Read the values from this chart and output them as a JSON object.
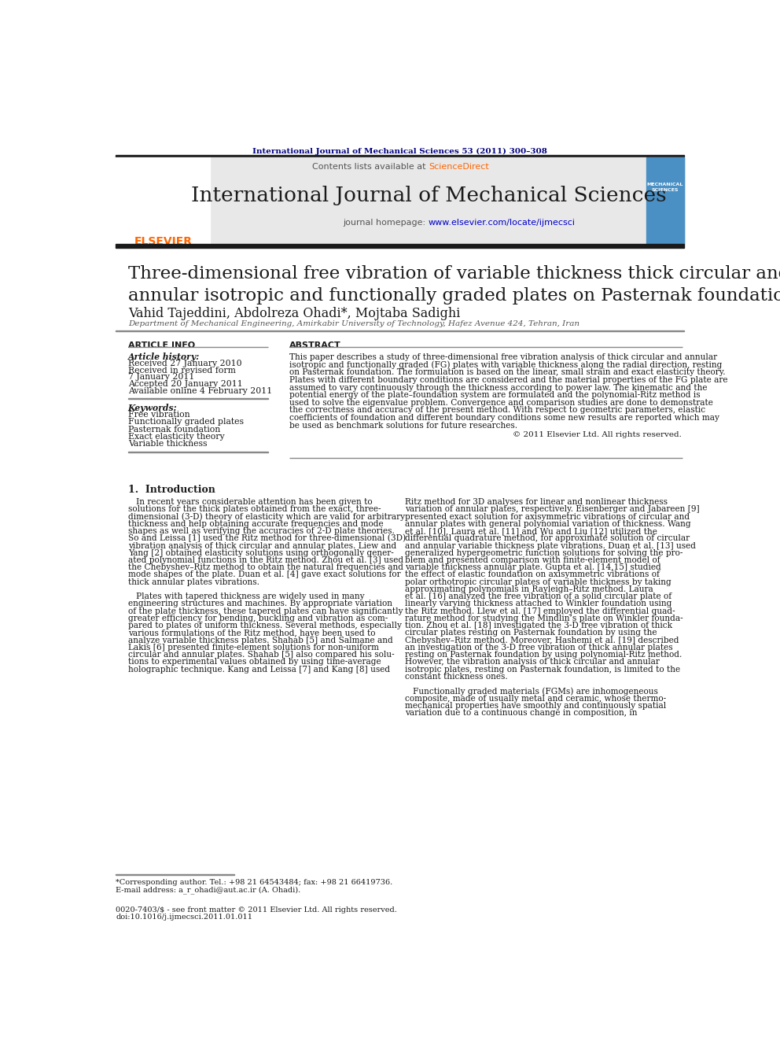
{
  "page_bg": "#ffffff",
  "header_journal_ref": "International Journal of Mechanical Sciences 53 (2011) 300–308",
  "header_ref_color": "#000080",
  "journal_name": "International Journal of Mechanical Sciences",
  "contents_text": "Contents lists available at ",
  "sciencedirect_text": "ScienceDirect",
  "sciencedirect_color": "#ff6600",
  "journal_homepage": "journal homepage: ",
  "homepage_url": "www.elsevier.com/locate/ijmecsci",
  "homepage_url_color": "#0000ff",
  "header_bg": "#e8e8e8",
  "paper_title": "Three-dimensional free vibration of variable thickness thick circular and\nannular isotropic and functionally graded plates on Pasternak foundation",
  "authors": "Vahid Tajeddini, Abdolreza Ohadi*, Mojtaba Sadighi",
  "affiliation": "Department of Mechanical Engineering, Amirkabir University of Technology, Hafez Avenue 424, Tehran, Iran",
  "article_info_title": "ARTICLE INFO",
  "abstract_title": "ABSTRACT",
  "article_history_label": "Article history:",
  "article_history": [
    "Received 27 January 2010",
    "Received in revised form",
    "7 January 2011",
    "Accepted 20 January 2011",
    "Available online 4 February 2011"
  ],
  "keywords_label": "Keywords:",
  "keywords": [
    "Free vibration",
    "Functionally graded plates",
    "Pasternak foundation",
    "Exact elasticity theory",
    "Variable thickness"
  ],
  "copyright": "© 2011 Elsevier Ltd. All rights reserved.",
  "section1_title": "1.  Introduction",
  "footnote_line1": "*Corresponding author. Tel.: +98 21 64543484; fax: +98 21 66419736.",
  "footnote_line2": "E-mail address: a_r_ohadi@aut.ac.ir (A. Ohadi).",
  "footer_line1": "0020-7403/$ - see front matter © 2011 Elsevier Ltd. All rights reserved.",
  "footer_line2": "doi:10.1016/j.ijmecsci.2011.01.011",
  "elsevier_color": "#ff6600",
  "thick_bar_color": "#1a1a1a",
  "abstract_lines": [
    "This paper describes a study of three-dimensional free vibration analysis of thick circular and annular",
    "isotropic and functionally graded (FG) plates with variable thickness along the radial direction, resting",
    "on Pasternak foundation. The formulation is based on the linear, small strain and exact elasticity theory.",
    "Plates with different boundary conditions are considered and the material properties of the FG plate are",
    "assumed to vary continuously through the thickness according to power law. The kinematic and the",
    "potential energy of the plate–foundation system are formulated and the polynomial-Ritz method is",
    "used to solve the eigenvalue problem. Convergence and comparison studies are done to demonstrate",
    "the correctness and accuracy of the present method. With respect to geometric parameters, elastic",
    "coefficients of foundation and different boundary conditions some new results are reported which may",
    "be used as benchmark solutions for future researches."
  ],
  "intro_col1_lines": [
    "   In recent years considerable attention has been given to",
    "solutions for the thick plates obtained from the exact, three-",
    "dimensional (3-D) theory of elasticity which are valid for arbitrary",
    "thickness and help obtaining accurate frequencies and mode",
    "shapes as well as verifying the accuracies of 2-D plate theories.",
    "So and Leissa [1] used the Ritz method for three-dimensional (3D)",
    "vibration analysis of thick circular and annular plates. Liew and",
    "Yang [2] obtained elasticity solutions using orthogonally gener-",
    "ated polynomial functions in the Ritz method. Zhou et al. [3] used",
    "the Chebyshev–Ritz method to obtain the natural frequencies and",
    "mode shapes of the plate. Duan et al. [4] gave exact solutions for",
    "thick annular plates vibrations.",
    "",
    "   Plates with tapered thickness are widely used in many",
    "engineering structures and machines. By appropriate variation",
    "of the plate thickness, these tapered plates can have significantly",
    "greater efficiency for bending, buckling and vibration as com-",
    "pared to plates of uniform thickness. Several methods, especially",
    "various formulations of the Ritz method, have been used to",
    "analyze variable thickness plates. Shahab [5] and Salmane and",
    "Lakis [6] presented finite-element solutions for non-uniform",
    "circular and annular plates. Shahab [5] also compared his solu-",
    "tions to experimental values obtained by using time-average",
    "holographic technique. Kang and Leissa [7] and Kang [8] used"
  ],
  "intro_col2_lines": [
    "Ritz method for 3D analyses for linear and nonlinear thickness",
    "variation of annular plates, respectively. Eisenberger and Jabareen [9]",
    "presented exact solution for axisymmetric vibrations of circular and",
    "annular plates with general polynomial variation of thickness. Wang",
    "et al. [10], Laura et al. [11] and Wu and Liu [12] utilized the",
    "differential quadrature method, for approximate solution of circular",
    "and annular variable thickness plate vibrations. Duan et al. [13] used",
    "generalized hypergeometric function solutions for solving the pro-",
    "blem and presented comparison with finite-element model of",
    "variable thickness annular plate. Gupta et al. [14,15] studied",
    "the effect of elastic foundation on axisymmetric vibrations of",
    "polar orthotropic circular plates of variable thickness by taking",
    "approximating polynomials in Rayleigh–Ritz method. Laura",
    "et al. [16] analyzed the free vibration of a solid circular plate of",
    "linearly varying thickness attached to Winkler foundation using",
    "the Ritz method. Llew et al. [17] employed the differential quad-",
    "rature method for studying the Mindlin’s plate on Winkler founda-",
    "tion. Zhou et al. [18] investigated the 3-D free vibration of thick",
    "circular plates resting on Pasternak foundation by using the",
    "Chebyshev–Ritz method. Moreover, Hashemi et al. [19] described",
    "an investigation of the 3-D free vibration of thick annular plates",
    "resting on Pasternak foundation by using polynomial-Ritz method.",
    "However, the vibration analysis of thick circular and annular",
    "isotropic plates, resting on Pasternak foundation, is limited to the",
    "constant thickness ones.",
    "",
    "   Functionally graded materials (FGMs) are inhomogeneous",
    "composite, made of usually metal and ceramic, whose thermo-",
    "mechanical properties have smoothly and continuously spatial",
    "variation due to a continuous change in composition, in"
  ]
}
